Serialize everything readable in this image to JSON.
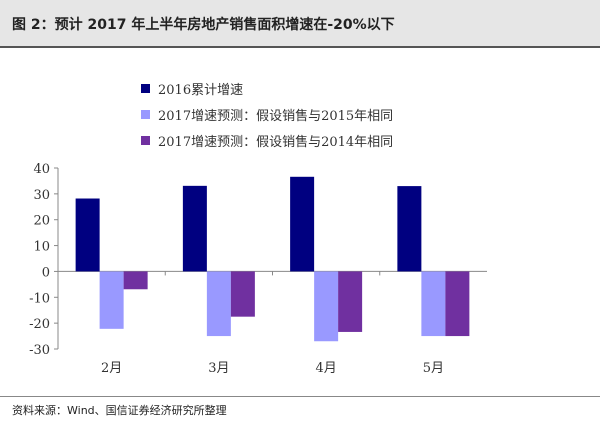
{
  "header": {
    "title": "图 2：预计 2017 年上半年房地产销售面积增速在-20%以下"
  },
  "footer": {
    "source": "资料来源：Wind、国信证券经济研究所整理"
  },
  "chart_data": {
    "type": "bar",
    "title": "预计 2017 年上半年房地产销售面积增速在-20%以下",
    "categories": [
      "2月",
      "3月",
      "4月",
      "5月"
    ],
    "series": [
      {
        "name": "2016累计增速",
        "color": "#000080",
        "values": [
          28.2,
          33.1,
          36.6,
          33
        ]
      },
      {
        "name": "2017增速预测：假设销售与2015年相同",
        "color": "#9999ff",
        "values": [
          -22.2,
          -25,
          -27,
          -25
        ]
      },
      {
        "name": "2017增速预测：假设销售与2014年相同",
        "color": "#7030a0",
        "values": [
          -6.9,
          -17.5,
          -23.4,
          -25
        ]
      }
    ],
    "ylim": [
      -30,
      40
    ],
    "yticks": [
      40,
      30,
      20,
      10,
      0,
      -10,
      -20,
      -30
    ],
    "xlabel": "",
    "ylabel": "",
    "grid": false,
    "legend": "top"
  }
}
